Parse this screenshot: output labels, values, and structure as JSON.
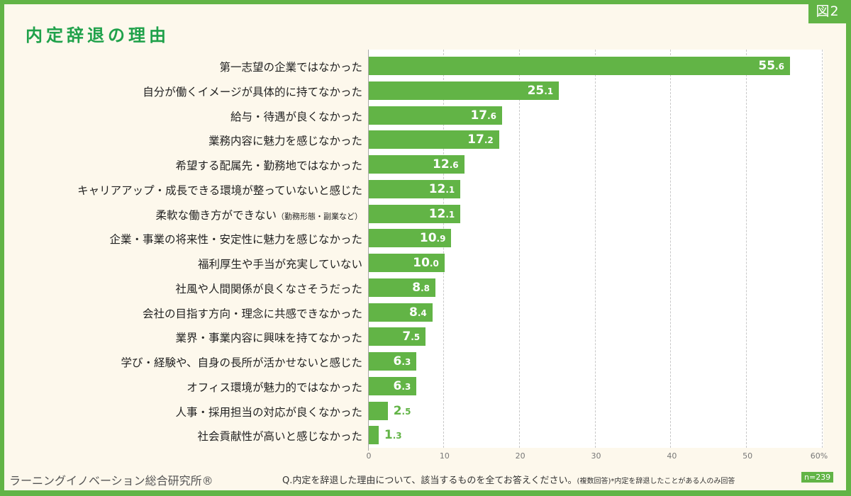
{
  "header": {
    "title": "内定辞退の理由",
    "figure_tag": "図2"
  },
  "footer": {
    "brand": "ラーニングイノベーション総合研究所®",
    "question": "Q.内定を辞退した理由について、該当するものを全てお答えください。",
    "question_note": "(複数回答)*内定を辞退したことがある人のみ回答",
    "sample_size": "n=239"
  },
  "colors": {
    "accent": "#62b446",
    "title": "#1fa14a",
    "background": "#fdf8ec"
  },
  "chart_data": {
    "type": "bar",
    "orientation": "horizontal",
    "title": "内定辞退の理由",
    "xlabel": "",
    "ylabel": "",
    "xlim": [
      0,
      60
    ],
    "x_unit": "%",
    "x_ticks": [
      "0",
      "10",
      "20",
      "30",
      "40",
      "50",
      "60%"
    ],
    "grid": true,
    "categories": [
      "第一志望の企業ではなかった",
      "自分が働くイメージが具体的に持てなかった",
      "給与・待遇が良くなかった",
      "業務内容に魅力を感じなかった",
      "希望する配属先・勤務地ではなかった",
      "キャリアアップ・成長できる環境が整っていないと感じた",
      "柔軟な働き方ができない（勤務形態・副業など）",
      "企業・事業の将来性・安定性に魅力を感じなかった",
      "福利厚生や手当が充実していない",
      "社風や人間関係が良くなさそうだった",
      "会社の目指す方向・理念に共感できなかった",
      "業界・事業内容に興味を持てなかった",
      "学び・経験や、自身の長所が活かせないと感じた",
      "オフィス環境が魅力的ではなかった",
      "人事・採用担当の対応が良くなかった",
      "社会貢献性が高いと感じなかった"
    ],
    "values": [
      55.6,
      25.1,
      17.6,
      17.2,
      12.6,
      12.1,
      12.1,
      10.9,
      10.0,
      8.8,
      8.4,
      7.5,
      6.3,
      6.3,
      2.5,
      1.3
    ]
  },
  "rows": [
    {
      "label": "第一志望の企業ではなかった",
      "note": "",
      "int": "55",
      "dec": ".6"
    },
    {
      "label": "自分が働くイメージが具体的に持てなかった",
      "note": "",
      "int": "25",
      "dec": ".1"
    },
    {
      "label": "給与・待遇が良くなかった",
      "note": "",
      "int": "17",
      "dec": ".6"
    },
    {
      "label": "業務内容に魅力を感じなかった",
      "note": "",
      "int": "17",
      "dec": ".2"
    },
    {
      "label": "希望する配属先・勤務地ではなかった",
      "note": "",
      "int": "12",
      "dec": ".6"
    },
    {
      "label": "キャリアアップ・成長できる環境が整っていないと感じた",
      "note": "",
      "int": "12",
      "dec": ".1"
    },
    {
      "label": "柔軟な働き方ができない",
      "note": "（勤務形態・副業など）",
      "int": "12",
      "dec": ".1"
    },
    {
      "label": "企業・事業の将来性・安定性に魅力を感じなかった",
      "note": "",
      "int": "10",
      "dec": ".9"
    },
    {
      "label": "福利厚生や手当が充実していない",
      "note": "",
      "int": "10",
      "dec": ".0"
    },
    {
      "label": "社風や人間関係が良くなさそうだった",
      "note": "",
      "int": "8",
      "dec": ".8"
    },
    {
      "label": "会社の目指す方向・理念に共感できなかった",
      "note": "",
      "int": "8",
      "dec": ".4"
    },
    {
      "label": "業界・事業内容に興味を持てなかった",
      "note": "",
      "int": "7",
      "dec": ".5"
    },
    {
      "label": "学び・経験や、自身の長所が活かせないと感じた",
      "note": "",
      "int": "6",
      "dec": ".3"
    },
    {
      "label": "オフィス環境が魅力的ではなかった",
      "note": "",
      "int": "6",
      "dec": ".3"
    },
    {
      "label": "人事・採用担当の対応が良くなかった",
      "note": "",
      "int": "2",
      "dec": ".5"
    },
    {
      "label": "社会貢献性が高いと感じなかった",
      "note": "",
      "int": "1",
      "dec": ".3"
    }
  ]
}
